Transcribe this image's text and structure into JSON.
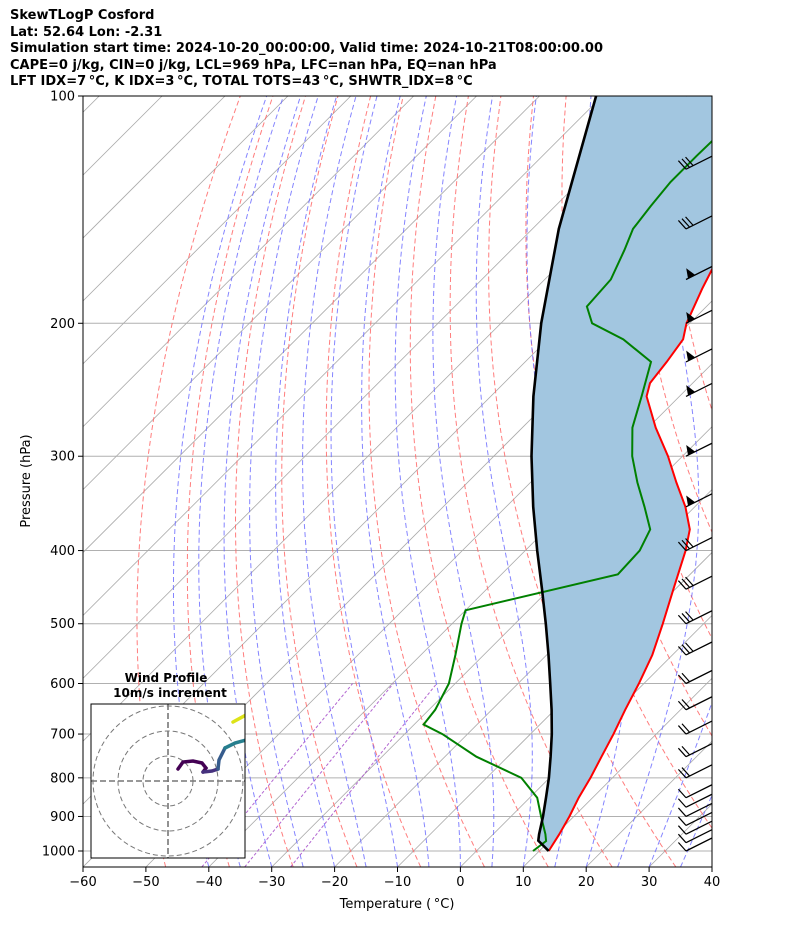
{
  "header": {
    "title": "SkewTLogP Cosford",
    "location": "Lat: 52.64   Lon: -2.31",
    "times": "Simulation start time: 2024-10-20_00:00:00, Valid time: 2024-10-21T08:00:00.00",
    "indices1": "CAPE=0 j/kg, CIN=0 j/kg, LCL=969 hPa, LFC=nan hPa, EQ=nan hPa",
    "indices2": "LFT IDX=7 °C, K IDX=3 °C, TOTAL TOTS=43 °C, SHWTR_IDX=8 °C"
  },
  "colors": {
    "temperature": "#ff0000",
    "dewpoint": "#008000",
    "parcel": "#000000",
    "shade": "#a2c6e0",
    "dry_adiabat": "#ff6666",
    "moist_adiabat": "#6666ff",
    "isotherm": "#aaaaaa",
    "mixing_ratio": "#aa55cc"
  },
  "chart_data": {
    "type": "line",
    "subtype": "skew-t log-p",
    "xlabel": "Temperature ( °C)",
    "ylabel": "Pressure (hPa)",
    "xlim": [
      -60,
      40
    ],
    "ylim": [
      1050,
      100
    ],
    "x_ticks": [
      "−60",
      "−50",
      "−40",
      "−30",
      "−20",
      "−10",
      "0",
      "10",
      "20",
      "30",
      "40"
    ],
    "y_ticks": [
      "100",
      "200",
      "300",
      "400",
      "500",
      "600",
      "700",
      "800",
      "900",
      "1000"
    ],
    "series": [
      {
        "key": "temperature",
        "points": [
          [
            1000,
            11.5
          ],
          [
            950,
            10.5
          ],
          [
            900,
            9.3
          ],
          [
            850,
            7.8
          ],
          [
            800,
            6.5
          ],
          [
            750,
            4.9
          ],
          [
            700,
            3.2
          ],
          [
            650,
            1.2
          ],
          [
            600,
            -0.8
          ],
          [
            550,
            -3.2
          ],
          [
            500,
            -6.5
          ],
          [
            450,
            -10.3
          ],
          [
            400,
            -14.5
          ],
          [
            375,
            -17.2
          ],
          [
            350,
            -21.5
          ],
          [
            325,
            -26.8
          ],
          [
            300,
            -32.3
          ],
          [
            275,
            -38.8
          ],
          [
            250,
            -45.2
          ],
          [
            240,
            -46.8
          ],
          [
            225,
            -47.5
          ],
          [
            210,
            -48.5
          ],
          [
            200,
            -50.5
          ],
          [
            180,
            -53.5
          ],
          [
            160,
            -56.5
          ],
          [
            140,
            -59.5
          ],
          [
            130,
            -60.8
          ],
          [
            120,
            -62.5
          ],
          [
            110,
            -63.0
          ],
          [
            100,
            -62.5
          ]
        ]
      },
      {
        "key": "dewpoint",
        "points": [
          [
            1000,
            9.0
          ],
          [
            970,
            9.5
          ],
          [
            950,
            8.3
          ],
          [
            900,
            4.8
          ],
          [
            850,
            1.2
          ],
          [
            800,
            -4.5
          ],
          [
            750,
            -15.0
          ],
          [
            700,
            -24.0
          ],
          [
            680,
            -28.5
          ],
          [
            650,
            -29.0
          ],
          [
            600,
            -31.0
          ],
          [
            550,
            -34.5
          ],
          [
            500,
            -38.5
          ],
          [
            480,
            -40.0
          ],
          [
            430,
            -21.5
          ],
          [
            400,
            -21.8
          ],
          [
            375,
            -23.5
          ],
          [
            350,
            -28.0
          ],
          [
            325,
            -33.0
          ],
          [
            300,
            -38.0
          ],
          [
            275,
            -42.5
          ],
          [
            250,
            -46.0
          ],
          [
            225,
            -50.0
          ],
          [
            210,
            -58.0
          ],
          [
            200,
            -65.5
          ],
          [
            190,
            -69.0
          ],
          [
            175,
            -69.5
          ],
          [
            160,
            -72.0
          ],
          [
            150,
            -74.0
          ],
          [
            140,
            -74.8
          ],
          [
            130,
            -75.5
          ],
          [
            120,
            -75.5
          ],
          [
            110,
            -75.3
          ],
          [
            100,
            -74.8
          ]
        ]
      },
      {
        "key": "parcel",
        "points": [
          [
            1000,
            11.5
          ],
          [
            969,
            8.2
          ],
          [
            950,
            7.3
          ],
          [
            900,
            5.1
          ],
          [
            850,
            2.6
          ],
          [
            800,
            -0.1
          ],
          [
            750,
            -3.2
          ],
          [
            700,
            -6.6
          ],
          [
            650,
            -10.5
          ],
          [
            600,
            -14.9
          ],
          [
            550,
            -19.7
          ],
          [
            500,
            -25.1
          ],
          [
            450,
            -31.2
          ],
          [
            400,
            -38.1
          ],
          [
            350,
            -45.7
          ],
          [
            300,
            -54.0
          ],
          [
            250,
            -63.2
          ],
          [
            200,
            -73.6
          ],
          [
            150,
            -85.8
          ],
          [
            100,
            -101.0
          ]
        ]
      }
    ],
    "wind_barb_levels_hPa": [
      1000,
      975,
      950,
      925,
      900,
      875,
      850,
      800,
      750,
      700,
      650,
      600,
      550,
      500,
      450,
      400,
      350,
      300,
      250,
      225,
      200,
      175,
      150,
      125,
      100
    ],
    "inset": {
      "title": "Wind Profile",
      "subtitle": "10m/s increment"
    }
  }
}
